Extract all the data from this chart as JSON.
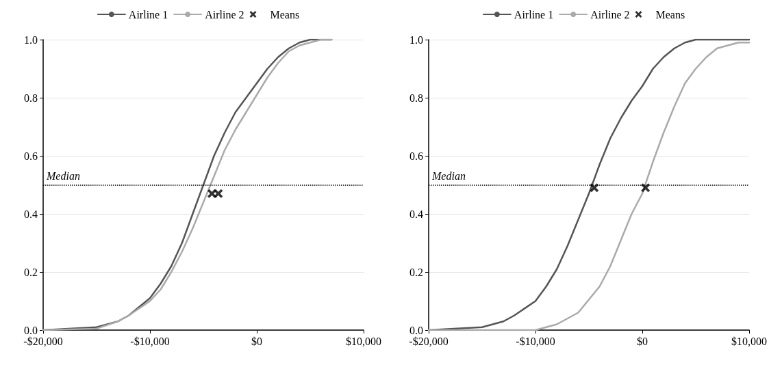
{
  "chart_data": [
    {
      "type": "line",
      "legend": "top",
      "grid": "y",
      "marker": "none",
      "xlim": [
        -20000,
        10000
      ],
      "xticks": [
        {
          "value": -20000,
          "label": "-$20,000"
        },
        {
          "value": -10000,
          "label": "-$10,000"
        },
        {
          "value": 0,
          "label": "$0"
        },
        {
          "value": 10000,
          "label": "$10,000"
        }
      ],
      "ylim": [
        0,
        1
      ],
      "yticks": [
        {
          "value": 0,
          "label": "0.0"
        },
        {
          "value": 0.2,
          "label": "0.2"
        },
        {
          "value": 0.4,
          "label": "0.4"
        },
        {
          "value": 0.6,
          "label": "0.6"
        },
        {
          "value": 0.8,
          "label": "0.8"
        },
        {
          "value": 1,
          "label": "1.0"
        }
      ],
      "ref_lines": [
        {
          "axis": "y",
          "value": 0.5,
          "label": "Median",
          "line_style": "dotted",
          "color": "#000000"
        }
      ],
      "series": [
        {
          "name": "Airline 1",
          "color": "#555555",
          "x": [
            -20000,
            -15000,
            -13000,
            -12000,
            -10000,
            -9000,
            -8000,
            -7000,
            -6000,
            -5000,
            -4000,
            -3000,
            -2000,
            -1000,
            0,
            1000,
            2000,
            3000,
            4000,
            5000,
            7000
          ],
          "values": [
            0,
            0.01,
            0.03,
            0.05,
            0.11,
            0.16,
            0.22,
            0.3,
            0.4,
            0.5,
            0.6,
            0.68,
            0.75,
            0.8,
            0.85,
            0.9,
            0.94,
            0.97,
            0.99,
            1,
            1
          ]
        },
        {
          "name": "Airline 2",
          "color": "#aaaaaa",
          "x": [
            -20000,
            -15000,
            -13000,
            -12000,
            -10000,
            -9000,
            -8000,
            -7000,
            -6000,
            -5000,
            -4000,
            -3000,
            -2000,
            -1000,
            0,
            1000,
            2000,
            3000,
            4000,
            5000,
            6000,
            7000
          ],
          "values": [
            0,
            0.005,
            0.03,
            0.05,
            0.1,
            0.14,
            0.2,
            0.27,
            0.35,
            0.44,
            0.53,
            0.62,
            0.69,
            0.75,
            0.81,
            0.87,
            0.92,
            0.96,
            0.98,
            0.99,
            1,
            1
          ]
        },
        {
          "name": "Means",
          "type": "scatter",
          "marker": "cross",
          "color": "#000000",
          "x": [
            -4200,
            -3600
          ],
          "values": [
            0.47,
            0.47
          ]
        }
      ]
    },
    {
      "type": "line",
      "legend": "top",
      "grid": "y",
      "marker": "none",
      "xlim": [
        -20000,
        10000
      ],
      "xticks": [
        {
          "value": -20000,
          "label": "-$20,000"
        },
        {
          "value": -10000,
          "label": "-$10,000"
        },
        {
          "value": 0,
          "label": "$0"
        },
        {
          "value": 10000,
          "label": "$10,000"
        }
      ],
      "ylim": [
        0,
        1
      ],
      "yticks": [
        {
          "value": 0,
          "label": "0.0"
        },
        {
          "value": 0.2,
          "label": "0.2"
        },
        {
          "value": 0.4,
          "label": "0.4"
        },
        {
          "value": 0.6,
          "label": "0.6"
        },
        {
          "value": 0.8,
          "label": "0.8"
        },
        {
          "value": 1,
          "label": "1.0"
        }
      ],
      "ref_lines": [
        {
          "axis": "y",
          "value": 0.5,
          "label": "Median",
          "line_style": "dotted",
          "color": "#000000"
        }
      ],
      "series": [
        {
          "name": "Airline 1",
          "color": "#555555",
          "x": [
            -20000,
            -15000,
            -13000,
            -12000,
            -10000,
            -9000,
            -8000,
            -7000,
            -6000,
            -5000,
            -4000,
            -3000,
            -2000,
            -1000,
            0,
            1000,
            2000,
            3000,
            4000,
            5000,
            6000,
            10000
          ],
          "values": [
            0,
            0.01,
            0.03,
            0.05,
            0.1,
            0.15,
            0.21,
            0.29,
            0.38,
            0.47,
            0.57,
            0.66,
            0.73,
            0.79,
            0.84,
            0.9,
            0.94,
            0.97,
            0.99,
            1,
            1,
            1
          ]
        },
        {
          "name": "Airline 2",
          "color": "#aaaaaa",
          "x": [
            -20000,
            -10000,
            -8000,
            -6000,
            -4000,
            -3000,
            -2000,
            -1000,
            0,
            1000,
            2000,
            3000,
            4000,
            5000,
            6000,
            7000,
            8000,
            9000,
            10000
          ],
          "values": [
            0,
            0,
            0.02,
            0.06,
            0.15,
            0.22,
            0.31,
            0.4,
            0.47,
            0.58,
            0.68,
            0.77,
            0.85,
            0.9,
            0.94,
            0.97,
            0.98,
            0.99,
            0.99
          ]
        },
        {
          "name": "Means",
          "type": "scatter",
          "marker": "cross",
          "color": "#000000",
          "x": [
            -4500,
            300
          ],
          "values": [
            0.49,
            0.49
          ]
        }
      ]
    }
  ]
}
